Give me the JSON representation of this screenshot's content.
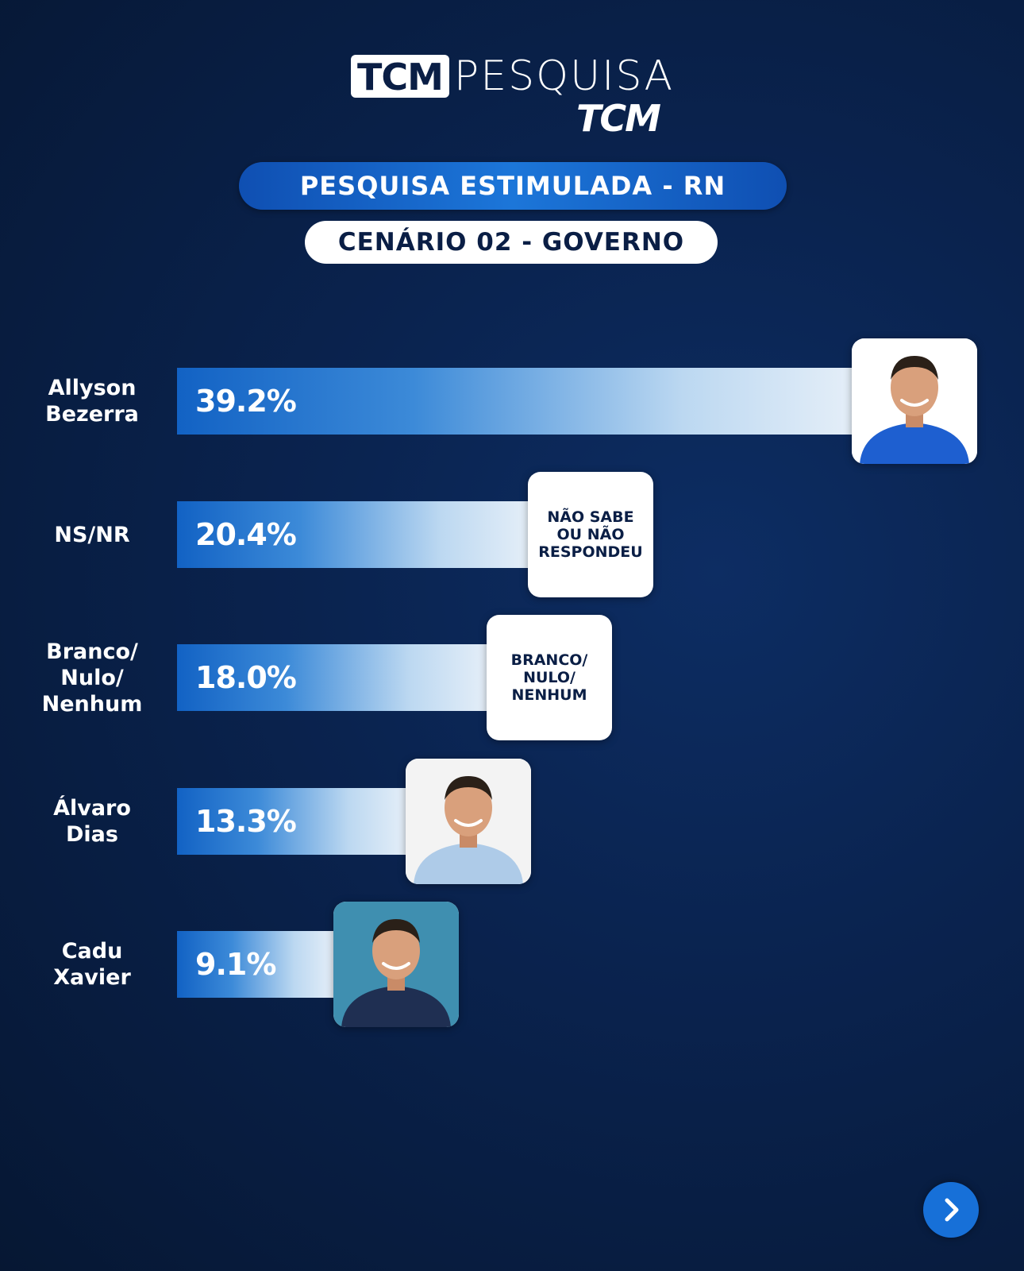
{
  "logo": {
    "box_text": "TCM",
    "word": "PESQUISA",
    "sub": "TCM"
  },
  "header": {
    "title": "PESQUISA ESTIMULADA - RN",
    "subtitle": "CENÁRIO 02 - GOVERNO"
  },
  "chart_data": {
    "type": "bar",
    "orientation": "horizontal",
    "categories": [
      "Allyson\nBezerra",
      "NS/NR",
      "Branco/\nNulo/\nNenhum",
      "Álvaro\nDias",
      "Cadu\nXavier"
    ],
    "values": [
      39.2,
      20.4,
      18.0,
      13.3,
      9.1
    ],
    "value_labels": [
      "39.2%",
      "20.4%",
      "18.0%",
      "13.3%",
      "9.1%"
    ],
    "badges": [
      {
        "kind": "photo",
        "icon": "candidate-photo-icon"
      },
      {
        "kind": "text",
        "text": "NÃO SABE\nOU NÃO\nRESPONDEU"
      },
      {
        "kind": "text",
        "text": "BRANCO/\nNULO/\nNENHUM"
      },
      {
        "kind": "photo",
        "icon": "candidate-photo-icon"
      },
      {
        "kind": "photo",
        "icon": "candidate-photo-icon"
      }
    ],
    "xlim": [
      0,
      39.2
    ],
    "bar_color_start": "#1262c4",
    "bar_color_end": "#e4eef8"
  },
  "nav": {
    "next_icon": "chevron-right-icon",
    "color": "#1770d8"
  }
}
